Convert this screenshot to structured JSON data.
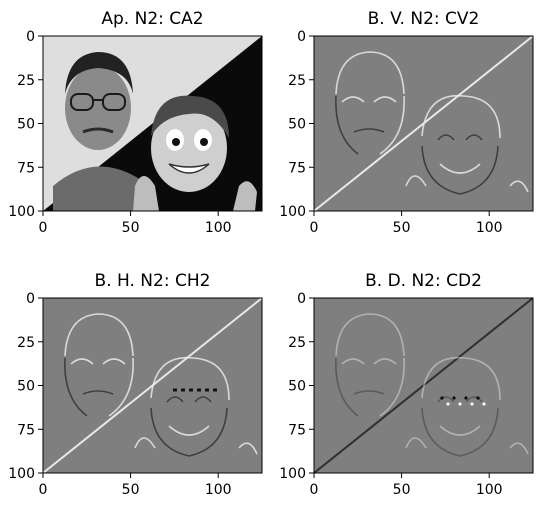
{
  "chart_data": [
    {
      "type": "heatmap",
      "title": "Ap. N2: CA2",
      "colormap": "gray",
      "kind": "approximation",
      "xlim": [
        0,
        125
      ],
      "ylim": [
        100,
        0
      ],
      "xticks": [
        0,
        50,
        100
      ],
      "yticks": [
        0,
        25,
        50,
        75,
        100
      ]
    },
    {
      "type": "heatmap",
      "title": "B. V. N2: CV2",
      "colormap": "gray",
      "kind": "vertical-detail",
      "xlim": [
        0,
        125
      ],
      "ylim": [
        100,
        0
      ],
      "xticks": [
        0,
        50,
        100
      ],
      "yticks": [
        0,
        25,
        50,
        75,
        100
      ]
    },
    {
      "type": "heatmap",
      "title": "B. H. N2: CH2",
      "colormap": "gray",
      "kind": "horizontal-detail",
      "xlim": [
        0,
        125
      ],
      "ylim": [
        100,
        0
      ],
      "xticks": [
        0,
        50,
        100
      ],
      "yticks": [
        0,
        25,
        50,
        75,
        100
      ]
    },
    {
      "type": "heatmap",
      "title": "B. D. N2: CD2",
      "colormap": "gray",
      "kind": "diagonal-detail",
      "xlim": [
        0,
        125
      ],
      "ylim": [
        100,
        0
      ],
      "xticks": [
        0,
        50,
        100
      ],
      "yticks": [
        0,
        25,
        50,
        75,
        100
      ]
    }
  ],
  "colors": {
    "mid_gray": "#808080",
    "detail_background": "#7f7f7f",
    "approx_light": "#e2e2e2",
    "approx_dark": "#000000",
    "axis": "#000000"
  }
}
